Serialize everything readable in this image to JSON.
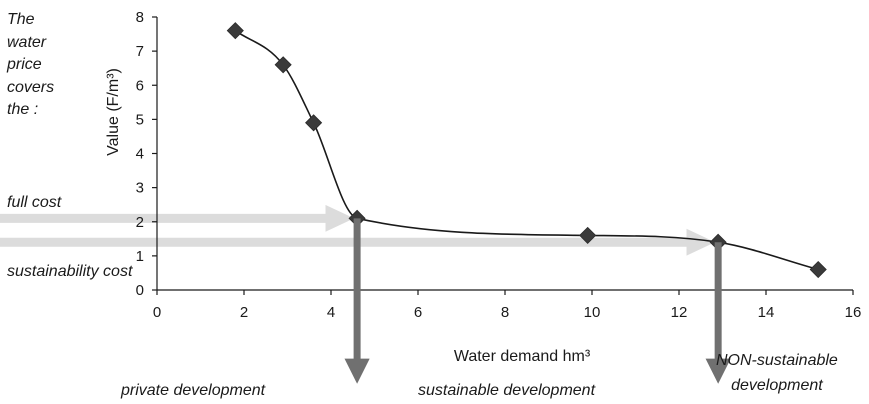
{
  "chart_data": {
    "type": "line",
    "xlabel": "Water demand hm³",
    "ylabel": "Value (F/m³)",
    "xlim": [
      0,
      16
    ],
    "ylim": [
      0,
      8
    ],
    "x_ticks": [
      "0",
      "2",
      "4",
      "6",
      "8",
      "10",
      "12",
      "14",
      "16"
    ],
    "y_ticks": [
      "0",
      "1",
      "2",
      "3",
      "4",
      "5",
      "6",
      "7",
      "8"
    ],
    "grid": false,
    "marker": "diamond",
    "series": [
      {
        "x": [
          1.8,
          2.9,
          3.6,
          4.6,
          9.9,
          12.9,
          15.2
        ],
        "y": [
          7.6,
          6.6,
          4.9,
          2.1,
          1.6,
          1.4,
          0.6
        ]
      }
    ],
    "arrows": [
      {
        "label": "full cost",
        "y": 2.1,
        "x_end": 4.6,
        "direction": "right"
      },
      {
        "label": "sustainability cost",
        "y": 1.4,
        "x_end": 12.9,
        "direction": "right"
      },
      {
        "x": 4.6,
        "from_y": 2.1,
        "direction": "down"
      },
      {
        "x": 12.9,
        "from_y": 1.4,
        "direction": "down"
      }
    ],
    "annotations": {
      "intro": "The\nwater\nprice\ncovers\nthe :",
      "full_cost": "full cost",
      "sustainability_cost": "sustainability cost",
      "zones": [
        "private development",
        "sustainable development",
        "NON-sustainable\ndevelopment"
      ]
    },
    "colors": {
      "line": "#1a1a1a",
      "marker": "#3a3a3a",
      "horizontal_arrow": "#dcdcdc",
      "vertical_arrow": "#707070"
    }
  }
}
